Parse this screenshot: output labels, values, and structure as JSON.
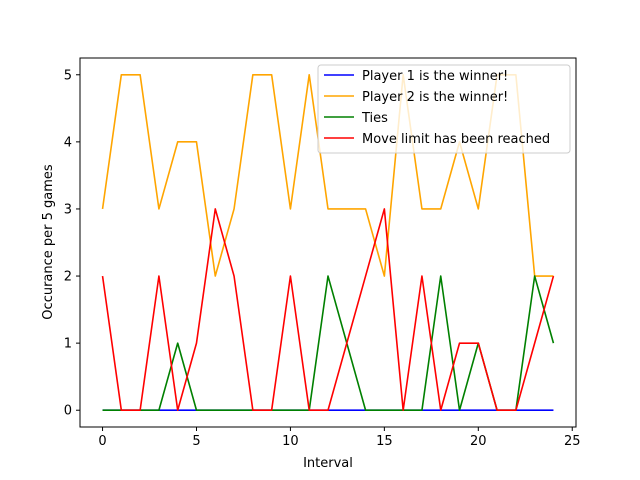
{
  "chart_data": {
    "type": "line",
    "title": "",
    "xlabel": "Interval",
    "ylabel": "Occurance per 5 games",
    "xlim": [
      -1.2,
      25.2
    ],
    "ylim": [
      -0.25,
      5.25
    ],
    "xticks": [
      0,
      5,
      10,
      15,
      20,
      25
    ],
    "yticks": [
      0,
      1,
      2,
      3,
      4,
      5
    ],
    "grid": false,
    "legend_position": "top-right",
    "x": [
      0,
      1,
      2,
      3,
      4,
      5,
      6,
      7,
      8,
      9,
      10,
      11,
      12,
      13,
      14,
      15,
      16,
      17,
      18,
      19,
      20,
      21,
      22,
      23,
      24
    ],
    "series": [
      {
        "name": "Player 1 is the winner!",
        "color": "#0000ff",
        "values": [
          0,
          0,
          0,
          0,
          0,
          0,
          0,
          0,
          0,
          0,
          0,
          0,
          0,
          0,
          0,
          0,
          0,
          0,
          0,
          0,
          0,
          0,
          0,
          0,
          0
        ]
      },
      {
        "name": "Player 2 is the winner!",
        "color": "#ffa500",
        "values": [
          3,
          5,
          5,
          3,
          4,
          4,
          2,
          3,
          5,
          5,
          3,
          5,
          3,
          3,
          3,
          2,
          5,
          3,
          3,
          4,
          3,
          5,
          5,
          2,
          2
        ]
      },
      {
        "name": "Ties",
        "color": "#008000",
        "values": [
          0,
          0,
          0,
          0,
          1,
          0,
          0,
          0,
          0,
          0,
          0,
          0,
          2,
          1,
          0,
          0,
          0,
          0,
          2,
          0,
          1,
          0,
          0,
          2,
          1
        ]
      },
      {
        "name": "Move limit has been reached",
        "color": "#ff0000",
        "values": [
          2,
          0,
          0,
          2,
          0,
          1,
          3,
          2,
          0,
          0,
          2,
          0,
          0,
          1,
          2,
          3,
          0,
          2,
          0,
          1,
          1,
          0,
          0,
          1,
          2
        ]
      }
    ]
  }
}
